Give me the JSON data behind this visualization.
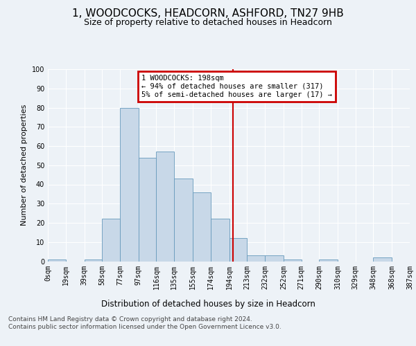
{
  "title": "1, WOODCOCKS, HEADCORN, ASHFORD, TN27 9HB",
  "subtitle": "Size of property relative to detached houses in Headcorn",
  "xlabel": "Distribution of detached houses by size in Headcorn",
  "ylabel": "Number of detached properties",
  "bin_labels": [
    "0sqm",
    "19sqm",
    "39sqm",
    "58sqm",
    "77sqm",
    "97sqm",
    "116sqm",
    "135sqm",
    "155sqm",
    "174sqm",
    "194sqm",
    "213sqm",
    "232sqm",
    "252sqm",
    "271sqm",
    "290sqm",
    "310sqm",
    "329sqm",
    "348sqm",
    "368sqm",
    "387sqm"
  ],
  "bar_values": [
    1,
    0,
    1,
    22,
    80,
    54,
    57,
    43,
    36,
    22,
    12,
    3,
    3,
    1,
    0,
    1,
    0,
    0,
    2,
    0
  ],
  "bar_color": "#c8d8e8",
  "bar_edge_color": "#6699bb",
  "vline_x": 198,
  "bin_edges": [
    0,
    19,
    39,
    58,
    77,
    97,
    116,
    135,
    155,
    174,
    194,
    213,
    232,
    252,
    271,
    290,
    310,
    329,
    348,
    368,
    387
  ],
  "ylim": [
    0,
    100
  ],
  "annotation_text": "1 WOODCOCKS: 198sqm\n← 94% of detached houses are smaller (317)\n5% of semi-detached houses are larger (17) →",
  "annotation_box_color": "#cc0000",
  "footer_text": "Contains HM Land Registry data © Crown copyright and database right 2024.\nContains public sector information licensed under the Open Government Licence v3.0.",
  "background_color": "#edf2f7",
  "grid_color": "#ffffff",
  "title_fontsize": 11,
  "subtitle_fontsize": 9,
  "ylabel_fontsize": 8,
  "xlabel_fontsize": 8.5,
  "tick_fontsize": 7,
  "footer_fontsize": 6.5,
  "annotation_fontsize": 7.5
}
